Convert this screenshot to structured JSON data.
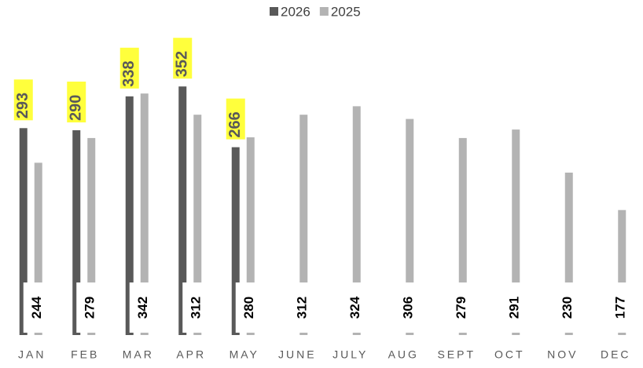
{
  "chart_data": {
    "type": "bar",
    "categories": [
      "JAN",
      "FEB",
      "MAR",
      "APR",
      "MAY",
      "JUNE",
      "JULY",
      "AUG",
      "SEPT",
      "OCT",
      "NOV",
      "DEC"
    ],
    "series": [
      {
        "name": "2026",
        "color": "#595959",
        "values": [
          293,
          290,
          338,
          352,
          266,
          null,
          null,
          null,
          null,
          null,
          null,
          null
        ]
      },
      {
        "name": "2025",
        "color": "#b3b3b3",
        "values": [
          244,
          279,
          342,
          312,
          280,
          312,
          324,
          306,
          279,
          291,
          230,
          177
        ]
      }
    ],
    "ylim": [
      0,
      450
    ],
    "legend": "top",
    "label_highlight": "#ffff3c"
  }
}
